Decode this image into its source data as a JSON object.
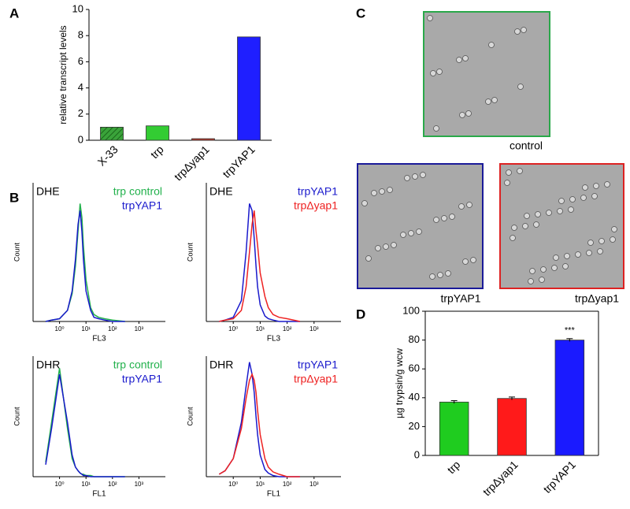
{
  "panel_labels": [
    "A",
    "B",
    "C",
    "D"
  ],
  "chart_data": [
    {
      "type": "bar",
      "ylabel": "relative transcript levels",
      "categories": [
        "X-33",
        "trp",
        "trpΔyap1",
        "trpYAP1"
      ],
      "values": [
        1.0,
        1.1,
        0.12,
        7.9
      ],
      "colors": [
        "#3aa33a",
        "#33cc33",
        "#c0392b",
        "#1f1fff"
      ],
      "hatch": [
        true,
        false,
        false,
        false
      ],
      "ylim": [
        0,
        10
      ],
      "yticks": [
        0,
        2,
        4,
        6,
        8,
        10
      ]
    },
    {
      "type": "line",
      "label": "DHE",
      "xlabel": "FL3",
      "ylabel": "Count",
      "xscale": "log",
      "xlim": [
        0.1,
        10000
      ],
      "ylim": [
        0,
        100
      ],
      "xticks": [
        {
          "value": 1,
          "label": "10⁰"
        },
        {
          "value": 10,
          "label": "10¹"
        },
        {
          "value": 100,
          "label": "10²"
        },
        {
          "value": 1000,
          "label": "10³"
        }
      ],
      "x": [
        0.3,
        0.5,
        1,
        2,
        3,
        4,
        5,
        6,
        7,
        8,
        10,
        15,
        20,
        30,
        50,
        100,
        300
      ],
      "series": [
        {
          "name": "trp control",
          "color": "#22b14c",
          "values": [
            0,
            1,
            2,
            8,
            20,
            40,
            65,
            85,
            75,
            55,
            30,
            10,
            5,
            3,
            2,
            1,
            0
          ]
        },
        {
          "name": "trpYAP1",
          "color": "#1a1acc",
          "values": [
            0,
            1,
            2,
            8,
            22,
            45,
            70,
            80,
            65,
            45,
            22,
            8,
            3,
            2,
            1,
            0,
            0
          ]
        }
      ]
    },
    {
      "type": "line",
      "label": "DHE",
      "xlabel": "FL3",
      "ylabel": "Count",
      "xscale": "log",
      "xlim": [
        0.1,
        10000
      ],
      "ylim": [
        0,
        100
      ],
      "xticks": [
        {
          "value": 1,
          "label": "10⁰"
        },
        {
          "value": 10,
          "label": "10¹"
        },
        {
          "value": 100,
          "label": "10²"
        },
        {
          "value": 1000,
          "label": "10³"
        }
      ],
      "x": [
        0.3,
        0.5,
        1,
        2,
        3,
        4,
        5,
        6,
        7,
        8,
        10,
        15,
        20,
        30,
        50,
        100,
        300
      ],
      "series": [
        {
          "name": "trpYAP1",
          "color": "#1a1acc",
          "values": [
            0,
            1,
            3,
            15,
            50,
            85,
            80,
            60,
            40,
            25,
            12,
            4,
            2,
            1,
            0,
            0,
            0
          ]
        },
        {
          "name": "trpΔyap1",
          "color": "#ee2222",
          "values": [
            0,
            1,
            2,
            8,
            25,
            50,
            70,
            80,
            65,
            55,
            35,
            18,
            10,
            5,
            3,
            2,
            0
          ]
        }
      ]
    },
    {
      "type": "line",
      "label": "DHR",
      "xlabel": "FL1",
      "ylabel": "Count",
      "xscale": "log",
      "xlim": [
        0.1,
        10000
      ],
      "ylim": [
        0,
        100
      ],
      "xticks": [
        {
          "value": 1,
          "label": "10⁰"
        },
        {
          "value": 10,
          "label": "10¹"
        },
        {
          "value": 100,
          "label": "10²"
        },
        {
          "value": 1000,
          "label": "10³"
        }
      ],
      "x": [
        0.3,
        0.5,
        1,
        2,
        3,
        4,
        5,
        6,
        7,
        8,
        10,
        15,
        20,
        30,
        50,
        100,
        300
      ],
      "series": [
        {
          "name": "trp control",
          "color": "#22b14c",
          "values": [
            12,
            45,
            90,
            40,
            15,
            8,
            5,
            3,
            2,
            2,
            1,
            1,
            0,
            0,
            0,
            0,
            0
          ]
        },
        {
          "name": "trpYAP1",
          "color": "#1a1acc",
          "values": [
            10,
            40,
            85,
            45,
            18,
            8,
            5,
            3,
            2,
            1,
            1,
            0,
            0,
            0,
            0,
            0,
            0
          ]
        }
      ]
    },
    {
      "type": "line",
      "label": "DHR",
      "xlabel": "FL1",
      "ylabel": "Count",
      "xscale": "log",
      "xlim": [
        0.1,
        10000
      ],
      "ylim": [
        0,
        100
      ],
      "xticks": [
        {
          "value": 1,
          "label": "10⁰"
        },
        {
          "value": 10,
          "label": "10¹"
        },
        {
          "value": 100,
          "label": "10²"
        },
        {
          "value": 1000,
          "label": "10³"
        }
      ],
      "x": [
        0.3,
        0.5,
        1,
        2,
        3,
        4,
        5,
        6,
        7,
        8,
        10,
        15,
        20,
        30,
        50,
        100,
        300
      ],
      "series": [
        {
          "name": "trpYAP1",
          "color": "#1a1acc",
          "values": [
            2,
            5,
            15,
            45,
            75,
            95,
            85,
            70,
            50,
            35,
            18,
            6,
            3,
            1,
            0,
            0,
            0
          ]
        },
        {
          "name": "trpΔyap1",
          "color": "#ee2222",
          "values": [
            2,
            5,
            15,
            40,
            65,
            80,
            85,
            80,
            70,
            55,
            35,
            15,
            8,
            4,
            2,
            0,
            0
          ]
        }
      ]
    },
    {
      "type": "bar",
      "ylabel": "µg trypsin/g wcw",
      "categories": [
        "trp",
        "trpΔyap1",
        "trpYAP1"
      ],
      "values": [
        37,
        39.5,
        80
      ],
      "errors": [
        1,
        1,
        1
      ],
      "annotations": [
        null,
        null,
        "***"
      ],
      "colors": [
        "#1fcc1f",
        "#ff1a1a",
        "#1a1aff"
      ],
      "ylim": [
        0,
        100
      ],
      "yticks": [
        0,
        20,
        40,
        60,
        80,
        100
      ]
    }
  ],
  "micrographs": [
    {
      "caption": "control",
      "border": "#2aa84a"
    },
    {
      "caption": "trpYAP1",
      "border": "#1a1a99"
    },
    {
      "caption": "trpΔyap1",
      "border": "#dd2222"
    }
  ]
}
